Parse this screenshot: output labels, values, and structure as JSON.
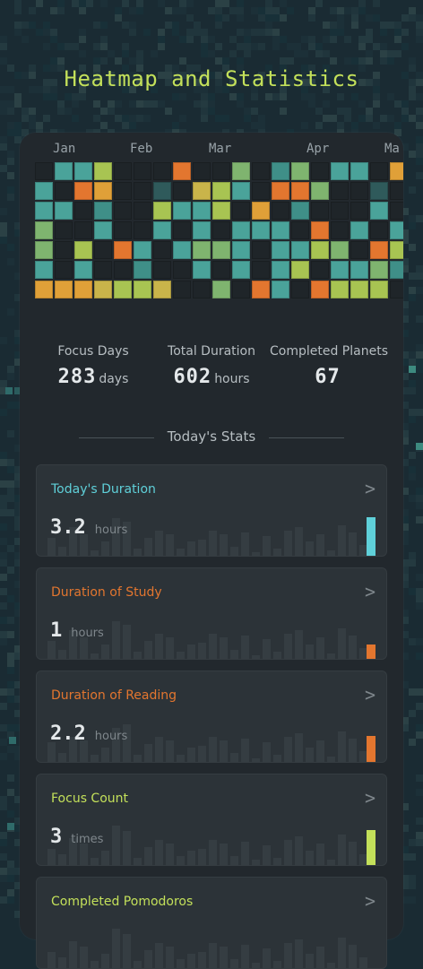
{
  "header": {
    "title": "Heatmap and Statistics"
  },
  "heatmap": {
    "months": [
      "Jan",
      "Feb",
      "Mar",
      "Apr",
      "Ma"
    ],
    "palette": {
      "0": "#262d32",
      "1": "#2f5a5b",
      "2": "#3f8f88",
      "3": "#4aa39a",
      "4": "#7fb46f",
      "5": "#a8c452",
      "6": "#c9b44a",
      "7": "#e0a038",
      "8": "#e3762f",
      "e": "#1f2529"
    },
    "grid": [
      "e335eee8oo4e24e33e7e4e44",
      "3eb7ee1e653e884ee1e6e435",
      "33e2ee5335e7e2eee3e252e4",
      "4ee3ee3e3e333e8e3e3eee55",
      "4e5e83e3443e3354e858353e",
      "3e3ee2ee3e3e35e3342e8eee",
      "7776556ee4e83e8555e3eeee"
    ]
  },
  "stats": [
    {
      "label": "Focus Days",
      "value": "283",
      "unit": "days"
    },
    {
      "label": "Total Duration",
      "value": "602",
      "unit": "hours"
    },
    {
      "label": "Completed Planets",
      "value": "67",
      "unit": ""
    }
  ],
  "section_title": "Today's Stats",
  "cards": [
    {
      "title": "Today's Duration",
      "value": "3.2",
      "unit": "hours",
      "color": "#5fd0d9",
      "today_level": 0.42
    },
    {
      "title": "Duration of Study",
      "value": "1",
      "unit": "hours",
      "color": "#e3762f",
      "today_level": 0.16
    },
    {
      "title": "Duration of Reading",
      "value": "2.2",
      "unit": "hours",
      "color": "#e3762f",
      "today_level": 0.28
    },
    {
      "title": "Focus Count",
      "value": "3",
      "unit": "times",
      "color": "#c3e05a",
      "today_level": 0.38
    },
    {
      "title": "Completed Pomodoros",
      "value": "",
      "unit": "",
      "color": "#c3e05a",
      "today_level": 0
    }
  ]
}
